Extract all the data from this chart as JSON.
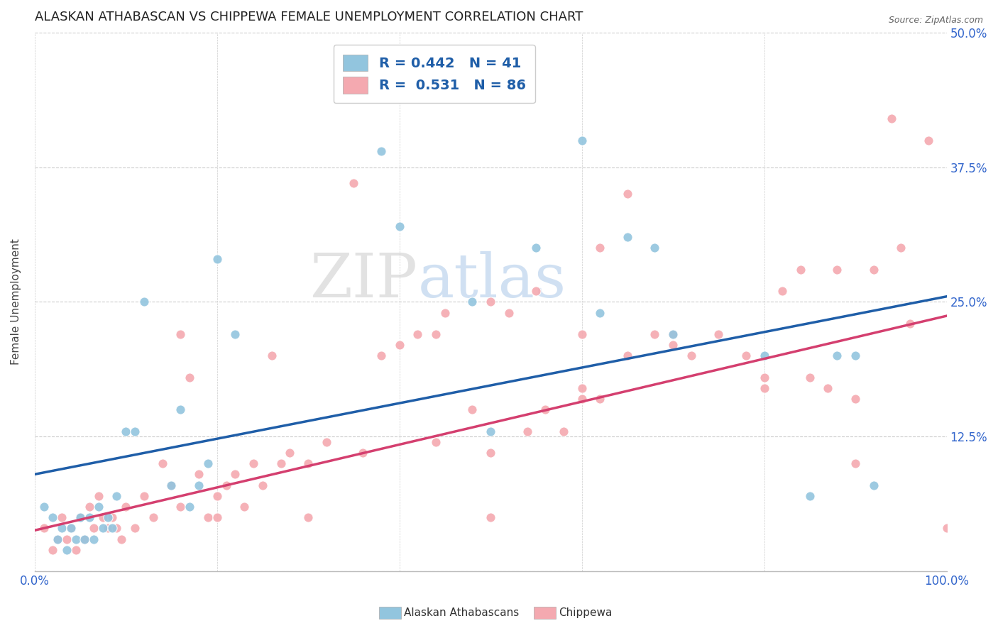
{
  "title": "ALASKAN ATHABASCAN VS CHIPPEWA FEMALE UNEMPLOYMENT CORRELATION CHART",
  "source": "Source: ZipAtlas.com",
  "ylabel": "Female Unemployment",
  "xlim": [
    0.0,
    1.0
  ],
  "ylim": [
    0.0,
    0.5
  ],
  "yticks": [
    0.0,
    0.125,
    0.25,
    0.375,
    0.5
  ],
  "ytick_labels": [
    "",
    "12.5%",
    "25.0%",
    "37.5%",
    "50.0%"
  ],
  "legend_blue_R": "0.442",
  "legend_blue_N": "41",
  "legend_pink_R": "0.531",
  "legend_pink_N": "86",
  "legend_label_blue": "Alaskan Athabascans",
  "legend_label_pink": "Chippewa",
  "blue_scatter_color": "#92c5de",
  "pink_scatter_color": "#f4a9b0",
  "blue_line_color": "#1f5ea8",
  "pink_line_color": "#d43f6f",
  "tick_color": "#3366cc",
  "title_color": "#333333",
  "watermark_zip_color": "#cccccc",
  "watermark_atlas_color": "#aac4e0",
  "blue_line_y_start": 0.09,
  "blue_line_y_end": 0.255,
  "pink_line_y_start": 0.038,
  "pink_line_y_end": 0.237,
  "background_color": "#ffffff",
  "grid_color": "#cccccc",
  "blue_scatter_x": [
    0.01,
    0.02,
    0.025,
    0.03,
    0.035,
    0.04,
    0.045,
    0.05,
    0.055,
    0.06,
    0.065,
    0.07,
    0.075,
    0.08,
    0.085,
    0.09,
    0.1,
    0.11,
    0.12,
    0.15,
    0.16,
    0.17,
    0.18,
    0.19,
    0.2,
    0.22,
    0.38,
    0.4,
    0.48,
    0.5,
    0.55,
    0.6,
    0.62,
    0.65,
    0.68,
    0.7,
    0.8,
    0.85,
    0.88,
    0.9,
    0.92
  ],
  "blue_scatter_y": [
    0.06,
    0.05,
    0.03,
    0.04,
    0.02,
    0.04,
    0.03,
    0.05,
    0.03,
    0.05,
    0.03,
    0.06,
    0.04,
    0.05,
    0.04,
    0.07,
    0.13,
    0.13,
    0.25,
    0.08,
    0.15,
    0.06,
    0.08,
    0.1,
    0.29,
    0.22,
    0.39,
    0.32,
    0.25,
    0.13,
    0.3,
    0.4,
    0.24,
    0.31,
    0.3,
    0.22,
    0.2,
    0.07,
    0.2,
    0.2,
    0.08
  ],
  "pink_scatter_x": [
    0.01,
    0.02,
    0.025,
    0.03,
    0.035,
    0.04,
    0.045,
    0.05,
    0.055,
    0.06,
    0.065,
    0.07,
    0.075,
    0.08,
    0.085,
    0.09,
    0.095,
    0.1,
    0.11,
    0.12,
    0.13,
    0.14,
    0.15,
    0.16,
    0.17,
    0.18,
    0.19,
    0.2,
    0.21,
    0.22,
    0.23,
    0.24,
    0.25,
    0.26,
    0.27,
    0.28,
    0.3,
    0.32,
    0.35,
    0.38,
    0.4,
    0.42,
    0.44,
    0.45,
    0.48,
    0.5,
    0.52,
    0.54,
    0.56,
    0.58,
    0.6,
    0.62,
    0.65,
    0.68,
    0.7,
    0.72,
    0.75,
    0.78,
    0.8,
    0.82,
    0.84,
    0.85,
    0.87,
    0.88,
    0.9,
    0.92,
    0.94,
    0.95,
    0.96,
    0.98,
    1.0,
    0.16,
    0.2,
    0.3,
    0.36,
    0.44,
    0.5,
    0.6,
    0.65,
    0.7,
    0.8,
    0.9,
    0.5,
    0.55,
    0.6,
    0.62
  ],
  "pink_scatter_y": [
    0.04,
    0.02,
    0.03,
    0.05,
    0.03,
    0.04,
    0.02,
    0.05,
    0.03,
    0.06,
    0.04,
    0.07,
    0.05,
    0.04,
    0.05,
    0.04,
    0.03,
    0.06,
    0.04,
    0.07,
    0.05,
    0.1,
    0.08,
    0.06,
    0.18,
    0.09,
    0.05,
    0.07,
    0.08,
    0.09,
    0.06,
    0.1,
    0.08,
    0.2,
    0.1,
    0.11,
    0.1,
    0.12,
    0.36,
    0.2,
    0.21,
    0.22,
    0.22,
    0.24,
    0.15,
    0.11,
    0.24,
    0.13,
    0.15,
    0.13,
    0.16,
    0.16,
    0.2,
    0.22,
    0.21,
    0.2,
    0.22,
    0.2,
    0.18,
    0.26,
    0.28,
    0.18,
    0.17,
    0.28,
    0.16,
    0.28,
    0.42,
    0.3,
    0.23,
    0.4,
    0.04,
    0.22,
    0.05,
    0.05,
    0.11,
    0.12,
    0.05,
    0.17,
    0.35,
    0.22,
    0.17,
    0.1,
    0.25,
    0.26,
    0.22,
    0.3
  ]
}
